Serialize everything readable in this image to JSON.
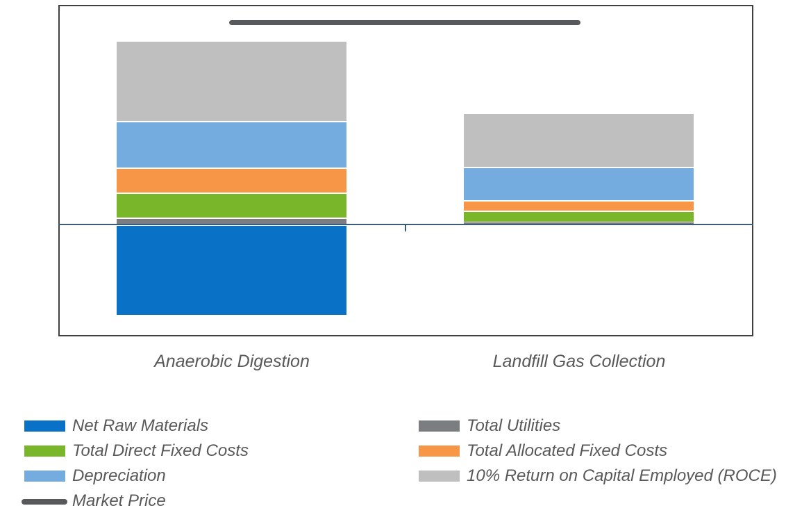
{
  "chart_data": {
    "type": "bar",
    "subtype": "stacked-bar-with-negative-and-reference-line",
    "title": "",
    "xlabel": "",
    "ylabel": "",
    "axis_tick_labels_visible": false,
    "grid": false,
    "categories": [
      "Anaerobic Digestion",
      "Landfill Gas Collection"
    ],
    "units": "indexed, Market Price = 100 (no numeric axis shown in image)",
    "series": [
      {
        "name": "Net Raw Materials",
        "color": "#0972c6",
        "role": "negative-stack",
        "values": [
          -45.0,
          0.0
        ]
      },
      {
        "name": "Total Utilities",
        "color": "#7b7d80",
        "role": "positive-stack",
        "values": [
          3.0,
          1.0
        ]
      },
      {
        "name": "Total Direct Fixed Costs",
        "color": "#7ab629",
        "role": "positive-stack",
        "values": [
          12.4,
          5.6
        ]
      },
      {
        "name": "Total Allocated Fixed Costs",
        "color": "#f79646",
        "role": "positive-stack",
        "values": [
          12.4,
          5.2
        ]
      },
      {
        "name": "Depreciation",
        "color": "#74acdf",
        "role": "positive-stack",
        "values": [
          23.4,
          16.5
        ]
      },
      {
        "name": "10% Return on Capital Employed (ROCE)",
        "color": "#bfbfbf",
        "role": "positive-stack",
        "values": [
          40.0,
          26.8
        ]
      }
    ],
    "reference_line": {
      "name": "Market Price",
      "color": "#58595b",
      "value": 100
    },
    "legend_position": "bottom-two-columns"
  },
  "legend": {
    "columns": [
      {
        "items": [
          {
            "label": "Net Raw Materials",
            "swatch": "rect",
            "color": "#0972c6"
          },
          {
            "label": "Total Direct Fixed Costs",
            "swatch": "rect",
            "color": "#7ab629"
          },
          {
            "label": "Depreciation",
            "swatch": "rect",
            "color": "#74acdf"
          },
          {
            "label": "Market Price",
            "swatch": "line",
            "color": "#58595b"
          }
        ]
      },
      {
        "items": [
          {
            "label": "Total Utilities",
            "swatch": "rect",
            "color": "#7b7d80"
          },
          {
            "label": "Total Allocated Fixed Costs",
            "swatch": "rect",
            "color": "#f79646"
          },
          {
            "label": "10% Return on Capital Employed (ROCE)",
            "swatch": "rect",
            "color": "#bfbfbf"
          }
        ]
      }
    ]
  },
  "colors": {
    "plot_border": "#3f3f3f",
    "zero_axis": "#3e5c76",
    "label_text": "#595959",
    "background": "#ffffff"
  }
}
